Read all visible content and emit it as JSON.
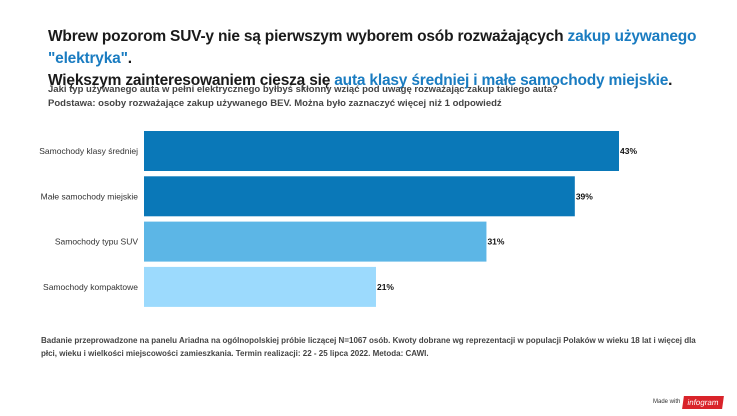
{
  "title": {
    "line1_a": "Wbrew pozorom SUV-y nie są pierwszym wyborem osób rozważających ",
    "line1_b": "zakup używanego \"elektryka\"",
    "line1_c": ".",
    "line2_a": "Większym zainteresowaniem cieszą się ",
    "line2_b": "auta klasy średniej i małe samochody miejskie",
    "line2_c": "."
  },
  "subtitle": {
    "question": "Jaki typ używanego auta w pełni elektrycznego byłbyś skłonny wziąć pod uwagę rozważając zakup takiego auta?",
    "base": "Podstawa: osoby rozważające zakup używanego BEV. Można było zaznaczyć więcej niż 1 odpowiedź"
  },
  "chart_data": {
    "type": "bar",
    "orientation": "horizontal",
    "categories": [
      "Samochody klasy średniej",
      "Małe samochody miejskie",
      "Samochody typu SUV",
      "Samochody kompaktowe"
    ],
    "values": [
      43,
      39,
      31,
      21
    ],
    "labels": [
      "43%",
      "39%",
      "31%",
      "21%"
    ],
    "colors": [
      "#0a78b8",
      "#0a78b8",
      "#5cb6e6",
      "#9cdafd"
    ],
    "xlim": [
      0,
      43
    ]
  },
  "note": "Badanie przeprowadzone na panelu Ariadna na ogólnopolskiej próbie liczącej N=1067 osób. Kwoty dobrane wg reprezentacji w populacji Polaków w wieku 18 lat i więcej dla płci, wieku i wielkości miejscowości zamieszkania. Termin realizacji:  22 - 25 lipca 2022. Metoda: CAWI.",
  "footer": {
    "made_with": "Made with",
    "brand": "infogram"
  },
  "colors": {
    "accent": "#1a7cc1",
    "brand": "#d9232a"
  }
}
